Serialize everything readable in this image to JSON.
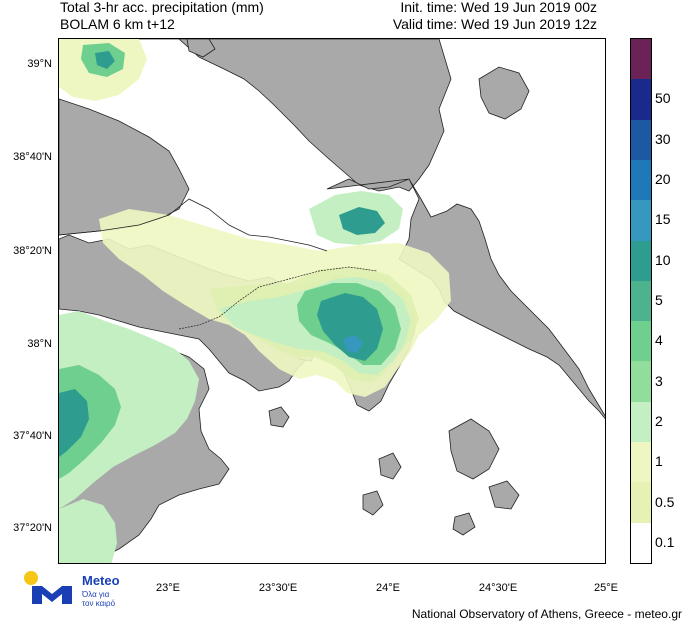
{
  "header": {
    "title_line1": "Total 3-hr acc. precipitation (mm)",
    "title_line2": "BOLAM 6 km t+12",
    "init_time": "Init. time: Wed 19 Jun 2019 00z",
    "valid_time": "Valid time: Wed 19 Jun 2019 12z"
  },
  "axes": {
    "lat_labels": [
      "39°N",
      "38°40'N",
      "38°20'N",
      "38°N",
      "37°40'N",
      "37°20'N"
    ],
    "lon_labels": [
      "23°E",
      "23°30'E",
      "24°E",
      "24°30'E",
      "25°E"
    ]
  },
  "legend": {
    "levels": [
      {
        "label": "",
        "color": "#6b2257"
      },
      {
        "label": "50",
        "color": "#1a2a8c"
      },
      {
        "label": "30",
        "color": "#1d58a2"
      },
      {
        "label": "20",
        "color": "#1f78b8"
      },
      {
        "label": "15",
        "color": "#3697bf"
      },
      {
        "label": "10",
        "color": "#2e9c8f"
      },
      {
        "label": "5",
        "color": "#4db38f"
      },
      {
        "label": "4",
        "color": "#6fcf8e"
      },
      {
        "label": "3",
        "color": "#91dd9c"
      },
      {
        "label": "2",
        "color": "#c4efc2"
      },
      {
        "label": "1",
        "color": "#eef7c2"
      },
      {
        "label": "0.5",
        "color": "#e6f2b3"
      },
      {
        "label": "0.1",
        "color": "#ffffff"
      }
    ]
  },
  "colors": {
    "land": "#a9a9a9",
    "sea": "#ffffff"
  },
  "brand": {
    "name": "Meteo",
    "tagline": "Όλα για\nτον καιρό"
  },
  "credit": "National Observatory of Athens, Greece - meteo.gr"
}
